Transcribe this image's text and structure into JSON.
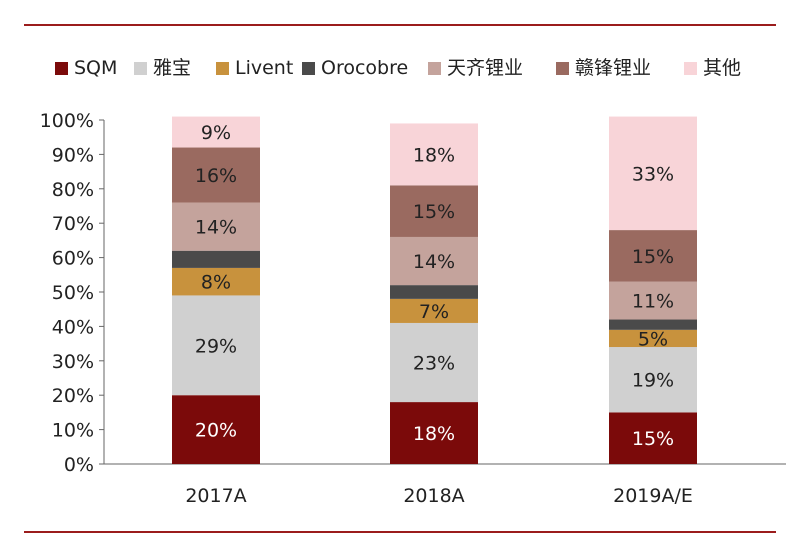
{
  "chart_data": {
    "type": "bar",
    "stacked": true,
    "categories": [
      "2017A",
      "2018A",
      "2019A/E"
    ],
    "series": [
      {
        "name": "SQM",
        "values": [
          20,
          18,
          15
        ],
        "labels": [
          "20%",
          "18%",
          "15%"
        ],
        "color": "#7b0a0a",
        "label_color": "#ffffff"
      },
      {
        "name": "雅宝",
        "values": [
          29,
          23,
          19
        ],
        "labels": [
          "29%",
          "23%",
          "19%"
        ],
        "color": "#d0d0d0",
        "label_color": "#222222"
      },
      {
        "name": "Livent",
        "values": [
          8,
          7,
          5
        ],
        "labels": [
          "8%",
          "7%",
          "5%"
        ],
        "color": "#c8923d",
        "label_color": "#222222"
      },
      {
        "name": "Orocobre",
        "values": [
          5,
          4,
          3
        ],
        "labels": [
          "",
          "",
          ""
        ],
        "color": "#4a4a4a",
        "label_color": "#ffffff"
      },
      {
        "name": "天齐锂业",
        "values": [
          14,
          14,
          11
        ],
        "labels": [
          "14%",
          "14%",
          "11%"
        ],
        "color": "#c4a39c",
        "label_color": "#222222"
      },
      {
        "name": "赣锋锂业",
        "values": [
          16,
          15,
          15
        ],
        "labels": [
          "16%",
          "15%",
          "15%"
        ],
        "color": "#9a6a60",
        "label_color": "#222222"
      },
      {
        "name": "其他",
        "values": [
          9,
          18,
          33
        ],
        "labels": [
          "9%",
          "18%",
          "33%"
        ],
        "color": "#f8d4d8",
        "label_color": "#222222"
      }
    ],
    "y_ticks": [
      "0%",
      "10%",
      "20%",
      "30%",
      "40%",
      "50%",
      "60%",
      "70%",
      "80%",
      "90%",
      "100%"
    ],
    "ylim": [
      0,
      100
    ],
    "legend_position": "top",
    "grid": false,
    "title": "",
    "xlabel": "",
    "ylabel": ""
  }
}
